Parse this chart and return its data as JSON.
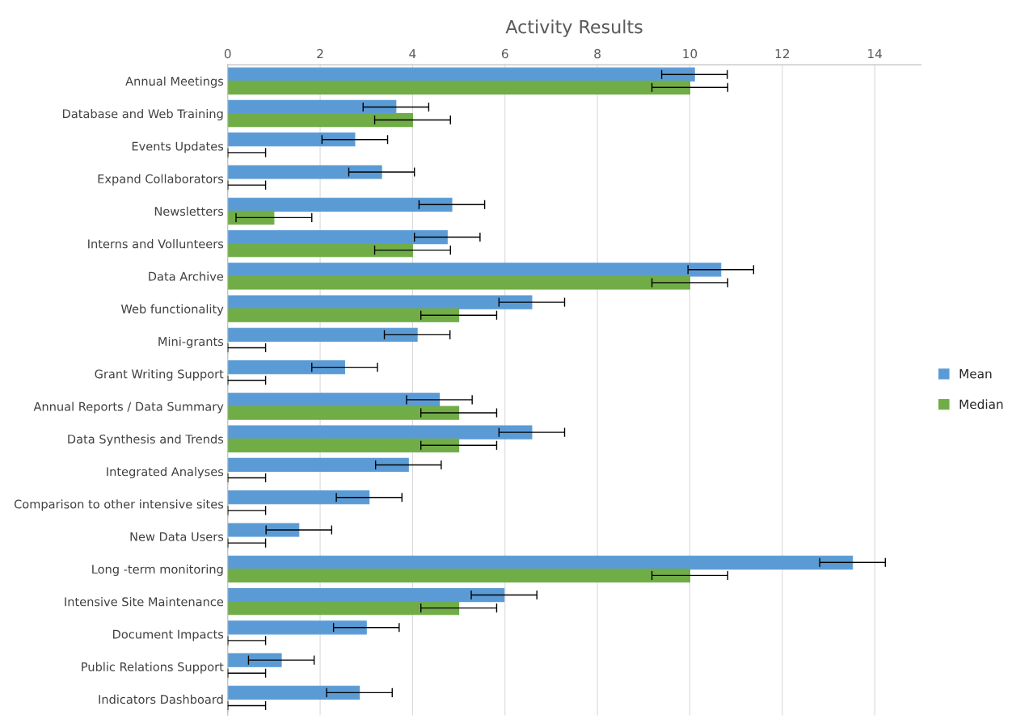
{
  "chart_data": {
    "type": "bar",
    "orientation": "horizontal",
    "title": "Activity Results",
    "categories": [
      "Annual Meetings",
      "Database and Web Training",
      "Events Updates",
      "Expand Collaborators",
      "Newsletters",
      "Interns and Vollunteers",
      "Data Archive",
      "Web functionality",
      "Mini-grants",
      "Grant Writing Support",
      "Annual Reports / Data Summary",
      "Data Synthesis and Trends",
      "Integrated Analyses",
      "Comparison to other intensive sites",
      "New Data Users",
      "Long -term monitoring",
      "Intensive Site Maintenance",
      "Document Impacts",
      "Public Relations Support",
      "Indicators Dashboard"
    ],
    "series": [
      {
        "name": "Mean",
        "color": "#5b9bd5",
        "values": [
          10.1,
          3.64,
          2.75,
          3.33,
          4.85,
          4.75,
          10.67,
          6.58,
          4.1,
          2.53,
          4.58,
          6.58,
          3.91,
          3.06,
          1.54,
          13.52,
          5.98,
          3.0,
          1.16,
          2.85
        ],
        "errors": [
          0.71,
          0.71,
          0.71,
          0.71,
          0.71,
          0.71,
          0.71,
          0.71,
          0.71,
          0.71,
          0.71,
          0.71,
          0.71,
          0.71,
          0.71,
          0.71,
          0.71,
          0.71,
          0.71,
          0.71
        ]
      },
      {
        "name": "Median",
        "color": "#70ad47",
        "values": [
          10,
          4,
          0,
          0,
          1,
          4,
          10,
          5,
          0,
          0,
          5,
          5,
          0,
          0,
          0,
          10,
          5,
          0,
          0,
          0
        ],
        "errors": [
          0.82,
          0.82,
          [
            0,
            0.82
          ],
          [
            0,
            0.82
          ],
          0.82,
          0.82,
          0.82,
          0.82,
          [
            0,
            0.82
          ],
          [
            0,
            0.82
          ],
          0.82,
          0.82,
          [
            0,
            0.82
          ],
          [
            0,
            0.82
          ],
          [
            0,
            0.82
          ],
          0.82,
          0.82,
          [
            0,
            0.82
          ],
          [
            0,
            0.82
          ],
          [
            0,
            0.82
          ]
        ]
      }
    ],
    "xlim": [
      0,
      15
    ],
    "xticks": [
      0,
      2,
      4,
      6,
      8,
      10,
      12,
      14
    ],
    "grid": "x",
    "legend": "right"
  }
}
